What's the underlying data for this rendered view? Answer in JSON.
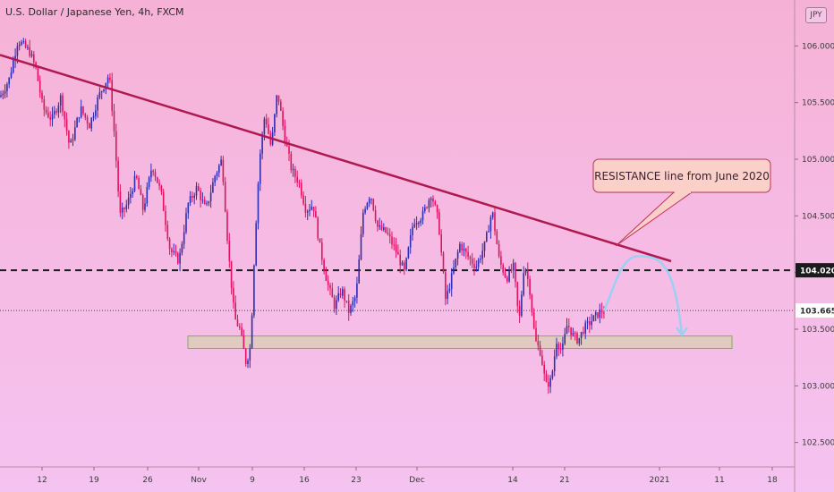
{
  "header": {
    "title": "U.S. Dollar / Japanese Yen, 4h, FXCM",
    "currency": "JPY"
  },
  "colors": {
    "bg_top": "#f6b2d6",
    "bg_bottom": "#f5c3f1",
    "up": "#2f2db0",
    "down": "#e2125f",
    "resistance": "#b0194f",
    "zone_fill": "#d9cfb2",
    "zone_border": "#7fb04d",
    "projection": "#9bd0f2",
    "level_label_bg": "#ffffff",
    "annotation_bg": "#fbd0c9",
    "annotation_border": "#c0305a"
  },
  "chart_data": {
    "type": "candlestick",
    "title": "U.S. Dollar / Japanese Yen, 4h, FXCM",
    "ylim": [
      102.3,
      106.35
    ],
    "x_ticks": [
      "12",
      "19",
      "26",
      "Nov",
      "9",
      "16",
      "23",
      "Dec",
      "14",
      "21",
      "2021",
      "11",
      "18"
    ],
    "y_ticks": [
      "106.000",
      "105.500",
      "105.000",
      "104.500",
      "104.000",
      "103.500",
      "103.000",
      "102.500"
    ],
    "y_tick_values": [
      106.0,
      105.5,
      105.0,
      104.5,
      104.0,
      103.5,
      103.0,
      102.5
    ],
    "price_path": [
      [
        0,
        105.55
      ],
      [
        10,
        105.7
      ],
      [
        20,
        106.05
      ],
      [
        33,
        105.95
      ],
      [
        40,
        105.8
      ],
      [
        48,
        105.45
      ],
      [
        58,
        105.35
      ],
      [
        68,
        105.55
      ],
      [
        78,
        105.1
      ],
      [
        90,
        105.45
      ],
      [
        100,
        105.3
      ],
      [
        110,
        105.55
      ],
      [
        122,
        105.75
      ],
      [
        128,
        105.2
      ],
      [
        134,
        104.5
      ],
      [
        142,
        104.6
      ],
      [
        152,
        104.85
      ],
      [
        160,
        104.55
      ],
      [
        170,
        104.95
      ],
      [
        180,
        104.7
      ],
      [
        190,
        104.2
      ],
      [
        200,
        104.1
      ],
      [
        210,
        104.6
      ],
      [
        220,
        104.75
      ],
      [
        230,
        104.55
      ],
      [
        240,
        104.85
      ],
      [
        248,
        105.0
      ],
      [
        255,
        104.2
      ],
      [
        262,
        103.6
      ],
      [
        268,
        103.5
      ],
      [
        275,
        103.2
      ],
      [
        280,
        103.35
      ],
      [
        285,
        104.3
      ],
      [
        290,
        105.0
      ],
      [
        296,
        105.4
      ],
      [
        303,
        105.1
      ],
      [
        310,
        105.6
      ],
      [
        318,
        105.2
      ],
      [
        326,
        104.9
      ],
      [
        334,
        104.8
      ],
      [
        342,
        104.55
      ],
      [
        350,
        104.6
      ],
      [
        358,
        104.2
      ],
      [
        366,
        103.9
      ],
      [
        374,
        103.7
      ],
      [
        382,
        103.85
      ],
      [
        390,
        103.65
      ],
      [
        398,
        103.8
      ],
      [
        406,
        104.55
      ],
      [
        414,
        104.7
      ],
      [
        422,
        104.4
      ],
      [
        432,
        104.35
      ],
      [
        442,
        104.2
      ],
      [
        452,
        104.0
      ],
      [
        462,
        104.45
      ],
      [
        472,
        104.5
      ],
      [
        482,
        104.7
      ],
      [
        490,
        104.45
      ],
      [
        498,
        103.75
      ],
      [
        506,
        104.0
      ],
      [
        514,
        104.25
      ],
      [
        522,
        104.15
      ],
      [
        532,
        104.05
      ],
      [
        542,
        104.25
      ],
      [
        550,
        104.55
      ],
      [
        558,
        104.1
      ],
      [
        566,
        103.95
      ],
      [
        574,
        104.05
      ],
      [
        580,
        103.55
      ],
      [
        586,
        104.1
      ],
      [
        592,
        103.85
      ],
      [
        598,
        103.4
      ],
      [
        604,
        103.3
      ],
      [
        610,
        103.0
      ],
      [
        616,
        103.05
      ],
      [
        622,
        103.4
      ],
      [
        628,
        103.3
      ],
      [
        634,
        103.55
      ],
      [
        640,
        103.45
      ],
      [
        646,
        103.4
      ],
      [
        652,
        103.5
      ],
      [
        658,
        103.55
      ],
      [
        664,
        103.6
      ],
      [
        670,
        103.65
      ],
      [
        675,
        103.665
      ]
    ],
    "resistance_line": {
      "from": [
        0,
        105.92
      ],
      "to": [
        750,
        104.1
      ],
      "label": "RESISTANCE line from June 2020"
    },
    "level_line": {
      "value": 104.02,
      "label": "104.020"
    },
    "current_price": {
      "value": 103.665,
      "label": "103.665"
    },
    "support_zone": {
      "low": 103.33,
      "high": 103.44
    },
    "projection": {
      "start_value": 103.665,
      "peak_value": 104.05,
      "end_value": 103.42
    }
  }
}
